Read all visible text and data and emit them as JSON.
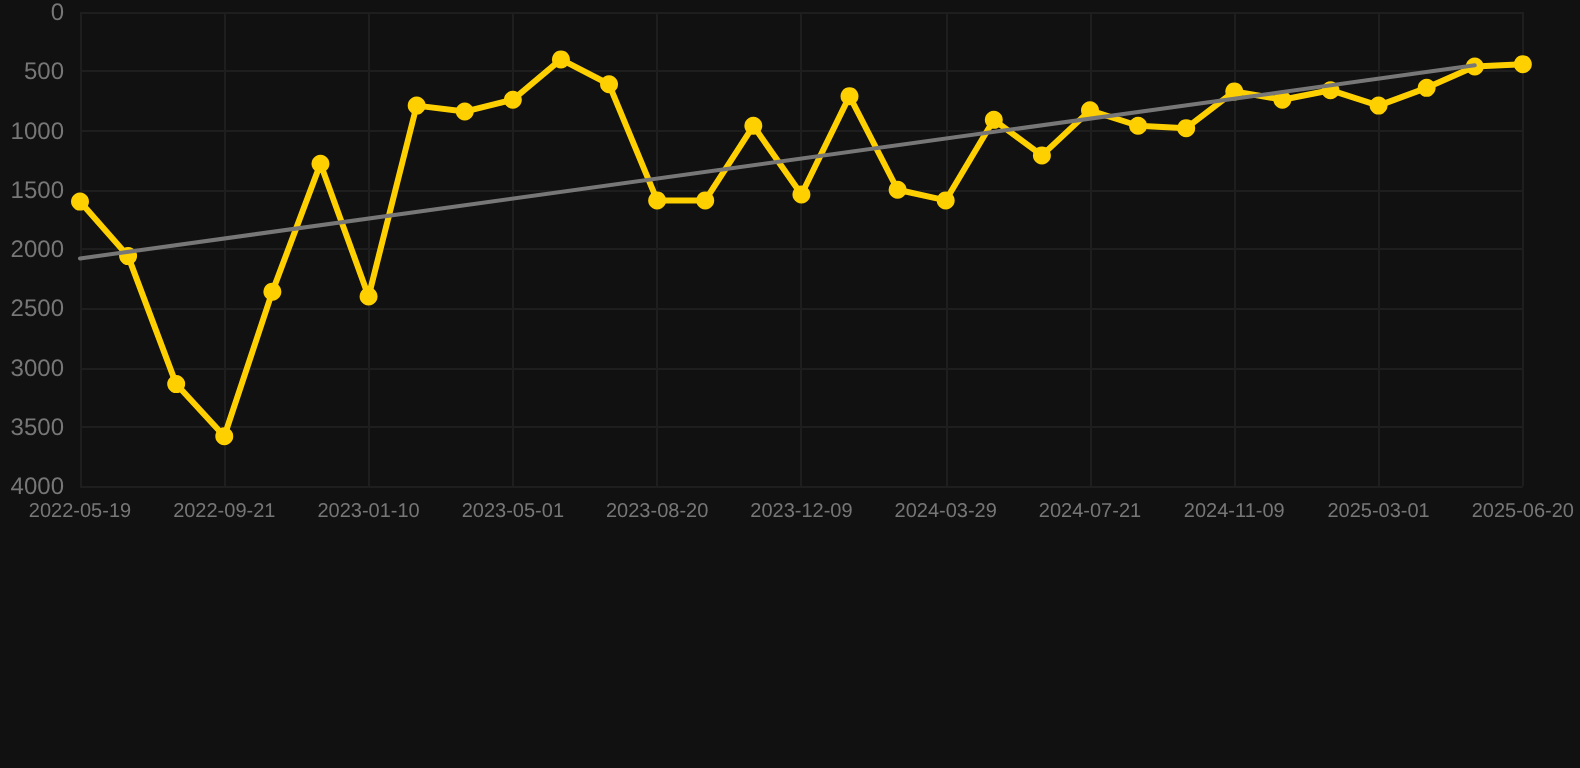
{
  "chart_data": {
    "type": "line",
    "categories": [
      "2022-05-19",
      null,
      null,
      "2022-09-21",
      null,
      null,
      "2023-01-10",
      null,
      null,
      "2023-05-01",
      null,
      null,
      "2023-08-20",
      null,
      null,
      "2023-12-09",
      null,
      null,
      "2024-03-29",
      null,
      null,
      "2024-07-21",
      null,
      null,
      "2024-11-09",
      null,
      null,
      "2025-03-01",
      null,
      null,
      "2025-06-20"
    ],
    "series": [
      {
        "color": "#ffd000",
        "marker": "circle",
        "values": [
          1600,
          2060,
          3140,
          3580,
          2360,
          1280,
          2400,
          790,
          840,
          740,
          400,
          610,
          1590,
          1590,
          960,
          1540,
          710,
          1500,
          1590,
          910,
          1210,
          830,
          960,
          980,
          670,
          740,
          660,
          790,
          640,
          460,
          440
        ]
      },
      {
        "color": "#777777",
        "marker": "none",
        "values": [
          2080,
          null,
          null,
          null,
          null,
          null,
          null,
          null,
          null,
          null,
          null,
          null,
          null,
          null,
          null,
          null,
          null,
          null,
          null,
          null,
          null,
          null,
          null,
          null,
          null,
          null,
          null,
          null,
          null,
          450,
          null
        ]
      }
    ],
    "ylim": [
      4000,
      0
    ],
    "yticks": [
      0,
      500,
      1000,
      1500,
      2000,
      2500,
      3000,
      3500,
      4000
    ],
    "grid": true,
    "line_style": "solid"
  }
}
